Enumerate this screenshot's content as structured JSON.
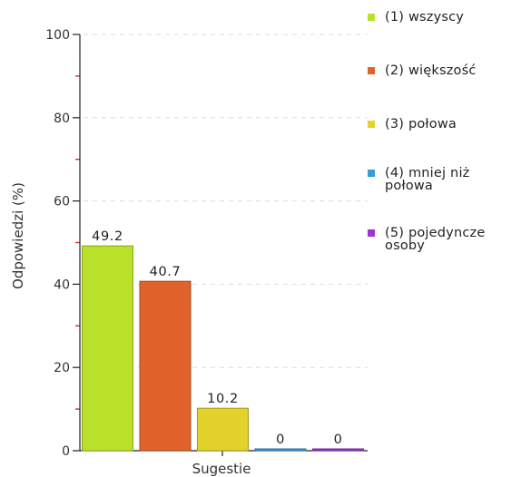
{
  "chart_data": {
    "type": "bar",
    "categories": [
      "(1) wszyscy",
      "(2) większość",
      "(3) połowa",
      "(4) mniej niż połowa",
      "(5) pojedyncze osoby"
    ],
    "values": [
      49.2,
      40.7,
      10.2,
      0,
      0
    ],
    "value_labels": [
      "49.2",
      "40.7",
      "10.2",
      "0",
      "0"
    ],
    "xlabel": "Sugestie",
    "ylabel": "Odpowiedzi (%)",
    "ylim": [
      0,
      100
    ],
    "yticks": [
      0,
      20,
      40,
      60,
      80,
      100
    ],
    "ytick_labels": [
      "0",
      "20",
      "40",
      "60",
      "80",
      "100"
    ],
    "grid": true,
    "legend_position": "right",
    "colors": [
      "#b9e12a",
      "#e0632b",
      "#e2d22b",
      "#3a9bd8",
      "#9b36d3"
    ],
    "legend": {
      "entries": [
        "(1) wszyscy",
        "(2) większość",
        "(3) połowa",
        "(4) mniej niż\npołowa",
        "(5) pojedyncze\nosoby"
      ]
    }
  }
}
